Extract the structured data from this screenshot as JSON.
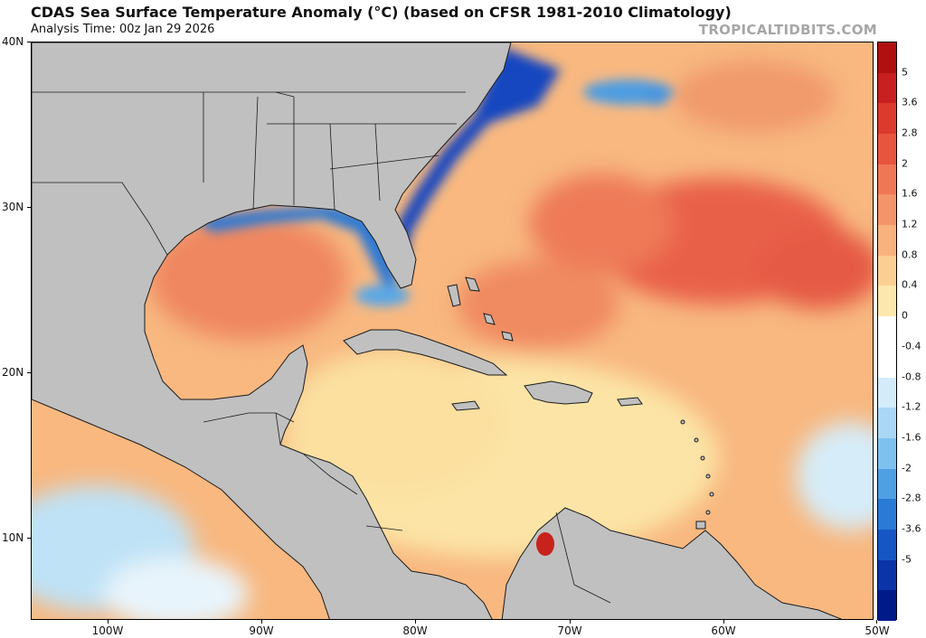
{
  "header": {
    "title": "CDAS Sea Surface Temperature Anomaly (°C) (based on CFSR 1981-2010 Climatology)",
    "subtitle": "Analysis Time: 00z Jan 29 2026",
    "credit": "TROPICALTIDBITS.COM"
  },
  "map": {
    "region": "Gulf of Mexico, Caribbean and western North Atlantic",
    "lat_range": [
      5,
      40
    ],
    "lon_range": [
      -105,
      -50
    ],
    "lat_labels": [
      {
        "value": 40,
        "label": "40N"
      },
      {
        "value": 30,
        "label": "30N"
      },
      {
        "value": 20,
        "label": "20N"
      },
      {
        "value": 10,
        "label": "10N"
      }
    ],
    "lon_labels": [
      {
        "value": -100,
        "label": "100W"
      },
      {
        "value": -90,
        "label": "90W"
      },
      {
        "value": -80,
        "label": "80W"
      },
      {
        "value": -70,
        "label": "70W"
      },
      {
        "value": -60,
        "label": "60W"
      },
      {
        "value": -50,
        "label": "50W"
      }
    ],
    "colors": {
      "land": "#c0c0c0",
      "coast": "#1a1a1a"
    }
  },
  "legend": {
    "labels": [
      "5",
      "3.6",
      "2.8",
      "2",
      "1.6",
      "1.2",
      "0.8",
      "0.4",
      "0",
      "-0.4",
      "-0.8",
      "-1.2",
      "-1.6",
      "-2",
      "-2.8",
      "-3.6",
      "-5"
    ],
    "colors": [
      "#b01010",
      "#c82020",
      "#dd3a2e",
      "#e8553e",
      "#ef7755",
      "#f4946a",
      "#f8b27e",
      "#fbcf94",
      "#fce8ae",
      "#ffffff",
      "#ffffff",
      "#d4ecfa",
      "#aad7f5",
      "#7ec1ee",
      "#4f9fe3",
      "#2a7ad6",
      "#1556c4",
      "#0a34a8",
      "#001a8a"
    ]
  }
}
